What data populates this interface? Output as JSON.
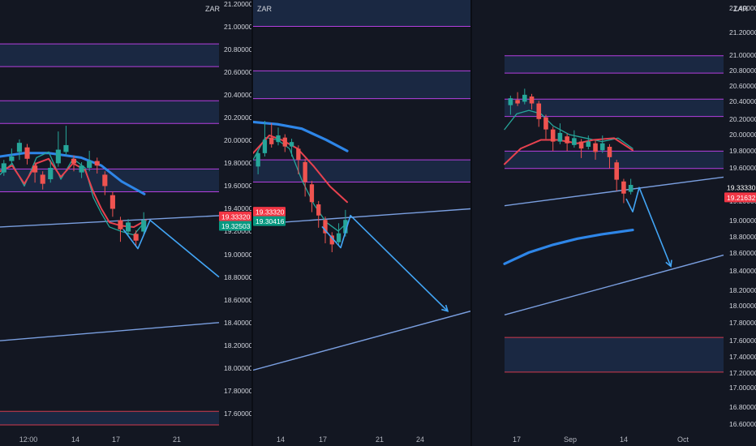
{
  "colors": {
    "background": "#131722",
    "zone_fill": "#1e2f4d",
    "zone_border": "#b53fe0",
    "zone_border_low": "#d23a4d",
    "trendline": "#7a9fe0",
    "projection": "#42a5f5",
    "ma_long": "#2e86e8",
    "ma_fast": "#e8424f",
    "ma_mid": "#26a69a",
    "candle_up": "#26a69a",
    "candle_down": "#ef5350",
    "tag_red": "#f23645",
    "tag_teal": "#089981"
  },
  "chart_data": [
    {
      "type": "candlestick",
      "title": "",
      "currency": "ZAR",
      "y_ticks": [
        "21.20000",
        "21.00000",
        "20.80000",
        "20.60000",
        "20.40000",
        "20.20000",
        "20.00000",
        "19.80000",
        "19.60000",
        "19.40000",
        "19.20000",
        "19.00000",
        "18.80000",
        "18.60000",
        "18.40000",
        "18.20000",
        "18.00000",
        "17.80000",
        "17.60000"
      ],
      "ylim": [
        17.5,
        21.3
      ],
      "x_ticks": [
        "12:00",
        "14",
        "17",
        "21"
      ],
      "price_tags": [
        {
          "label": "19.33320",
          "value": 19.3332,
          "color": "red"
        },
        {
          "label": "19.32503",
          "value": 19.25,
          "color": "teal"
        }
      ],
      "zones": [
        [
          20.65,
          20.85
        ],
        [
          20.15,
          20.35
        ],
        [
          19.55,
          19.75
        ],
        [
          17.5,
          17.62
        ]
      ],
      "trendlines": [
        {
          "from": [
            0,
            19.24
          ],
          "to": [
            270,
            19.34
          ]
        },
        {
          "from": [
            0,
            18.24
          ],
          "to": [
            270,
            18.4
          ]
        }
      ],
      "projection": [
        [
          152,
          19.22
        ],
        [
          170,
          19.05
        ],
        [
          185,
          19.3
        ],
        [
          270,
          18.8
        ]
      ],
      "ma_long": [
        [
          0,
          19.86
        ],
        [
          30,
          19.89
        ],
        [
          60,
          19.89
        ],
        [
          100,
          19.85
        ],
        [
          125,
          19.78
        ],
        [
          150,
          19.64
        ],
        [
          178,
          19.53
        ]
      ],
      "ma_fast": [
        [
          0,
          19.73
        ],
        [
          15,
          19.78
        ],
        [
          30,
          19.62
        ],
        [
          45,
          19.8
        ],
        [
          60,
          19.84
        ],
        [
          75,
          19.68
        ],
        [
          90,
          19.8
        ],
        [
          105,
          19.74
        ],
        [
          115,
          19.55
        ],
        [
          125,
          19.4
        ],
        [
          135,
          19.28
        ],
        [
          150,
          19.25
        ],
        [
          165,
          19.24
        ],
        [
          180,
          19.3
        ]
      ],
      "ma_mid": [
        [
          0,
          19.7
        ],
        [
          15,
          19.8
        ],
        [
          30,
          19.6
        ],
        [
          45,
          19.85
        ],
        [
          60,
          19.9
        ],
        [
          75,
          19.66
        ],
        [
          90,
          19.84
        ],
        [
          105,
          19.76
        ],
        [
          115,
          19.5
        ],
        [
          125,
          19.36
        ],
        [
          135,
          19.24
        ],
        [
          150,
          19.2
        ],
        [
          165,
          19.17
        ],
        [
          180,
          19.3
        ]
      ],
      "candles": [
        [
          19.72,
          19.8,
          19.78
        ],
        [
          19.82,
          19.86,
          19.9
        ],
        [
          19.9,
          19.98,
          19.86
        ],
        [
          19.94,
          19.84,
          19.82
        ],
        [
          19.78,
          19.72,
          19.66
        ],
        [
          19.7,
          19.62,
          19.6
        ],
        [
          19.66,
          19.76,
          19.8
        ],
        [
          19.8,
          19.92,
          20.05
        ],
        [
          19.9,
          19.96,
          20.1
        ],
        [
          19.84,
          19.8,
          19.76
        ],
        [
          19.72,
          19.78,
          19.7
        ],
        [
          19.76,
          19.82,
          19.88
        ],
        [
          19.82,
          19.78,
          19.74
        ],
        [
          19.7,
          19.6,
          19.55
        ],
        [
          19.52,
          19.4,
          19.36
        ],
        [
          19.3,
          19.22,
          19.14
        ],
        [
          19.2,
          19.28,
          19.24
        ],
        [
          19.18,
          19.12,
          19.1
        ],
        [
          19.2,
          19.3,
          19.34
        ]
      ]
    },
    {
      "type": "candlestick",
      "title": "",
      "currency": "ZAR",
      "y_ticks": [
        "21.20000",
        "21.00000",
        "20.80000",
        "20.60000",
        "20.40000",
        "20.20000",
        "20.00000",
        "19.80000",
        "19.60000",
        "19.40000",
        "19.20000",
        "19.00000",
        "18.80000",
        "18.60000",
        "18.40000",
        "18.20000",
        "18.00000",
        "17.80000",
        "17.60000"
      ],
      "ylim": [
        17.5,
        21.3
      ],
      "x_ticks": [
        "14",
        "17",
        "21",
        "24"
      ],
      "price_tags": [
        {
          "label": "19.33320",
          "value": 19.3332,
          "color": "red"
        },
        {
          "label": "19.30416",
          "value": 19.25,
          "color": "teal"
        }
      ],
      "zones": [
        [
          21.0,
          21.3
        ],
        [
          20.35,
          20.6
        ],
        [
          19.6,
          19.8
        ]
      ],
      "trendlines": [
        {
          "from": [
            0,
            19.22
          ],
          "to": [
            268,
            19.36
          ]
        },
        {
          "from": [
            0,
            17.91
          ],
          "to": [
            268,
            18.44
          ]
        }
      ],
      "projection": [
        [
          85,
          19.2
        ],
        [
          108,
          19.01
        ],
        [
          120,
          19.3
        ],
        [
          240,
          18.44
        ]
      ],
      "ma_long": [
        [
          0,
          20.14
        ],
        [
          30,
          20.12
        ],
        [
          60,
          20.08
        ],
        [
          90,
          19.98
        ],
        [
          116,
          19.88
        ]
      ],
      "ma_fast": [
        [
          0,
          19.86
        ],
        [
          20,
          20.02
        ],
        [
          35,
          19.98
        ],
        [
          55,
          19.9
        ],
        [
          75,
          19.74
        ],
        [
          95,
          19.56
        ],
        [
          116,
          19.42
        ]
      ],
      "ma_mid": [
        [
          0,
          19.8
        ],
        [
          15,
          20.0
        ],
        [
          30,
          19.98
        ],
        [
          45,
          19.9
        ],
        [
          60,
          19.62
        ],
        [
          75,
          19.4
        ],
        [
          90,
          19.24
        ],
        [
          105,
          19.16
        ],
        [
          118,
          19.25
        ]
      ],
      "candles": [
        [
          19.74,
          19.86,
          19.7
        ],
        [
          19.86,
          19.98,
          20.12
        ],
        [
          20.0,
          19.94,
          20.1
        ],
        [
          19.96,
          20.02,
          20.06
        ],
        [
          20.0,
          19.92,
          19.9
        ],
        [
          19.92,
          19.96,
          19.86
        ],
        [
          19.9,
          19.8,
          19.7
        ],
        [
          19.78,
          19.6,
          19.5
        ],
        [
          19.58,
          19.42,
          19.36
        ],
        [
          19.4,
          19.3,
          19.22
        ],
        [
          19.26,
          19.14,
          19.08
        ],
        [
          19.12,
          19.04,
          19.0
        ],
        [
          19.06,
          19.14,
          19.2
        ],
        [
          19.14,
          19.26,
          19.32
        ]
      ]
    },
    {
      "type": "candlestick",
      "title": "",
      "currency": "ZAR",
      "y_ticks": [
        "21.40000",
        "21.20000",
        "21.00000",
        "20.80000",
        "20.60000",
        "20.40000",
        "20.20000",
        "20.00000",
        "19.80000",
        "19.60000",
        "19.40000",
        "19.20000",
        "19.00000",
        "18.80000",
        "18.60000",
        "18.40000",
        "18.20000",
        "18.00000",
        "17.80000",
        "17.60000",
        "17.40000",
        "17.20000",
        "17.00000",
        "16.80000",
        "16.60000"
      ],
      "ylim": [
        16.5,
        21.55
      ],
      "x_ticks": [
        "17",
        "Sep",
        "14",
        "Oct"
      ],
      "price_tags": [
        {
          "label": "19.33330",
          "value": 19.3333,
          "color": "dark"
        },
        {
          "label": "19.21632",
          "value": 19.21632,
          "color": "red"
        }
      ],
      "zones": [
        [
          20.65,
          20.85
        ],
        [
          20.15,
          20.35
        ],
        [
          19.55,
          19.75
        ],
        [
          17.2,
          17.6
        ]
      ],
      "trendlines": [
        {
          "from": [
            0,
            19.12
          ],
          "to": [
            270,
            19.45
          ]
        },
        {
          "from": [
            0,
            17.86
          ],
          "to": [
            270,
            18.55
          ]
        }
      ],
      "projection": [
        [
          150,
          19.2
        ],
        [
          158,
          19.05
        ],
        [
          166,
          19.33
        ],
        [
          205,
          18.42
        ]
      ],
      "ma_long": [
        [
          0,
          18.45
        ],
        [
          30,
          18.58
        ],
        [
          60,
          18.67
        ],
        [
          90,
          18.74
        ],
        [
          120,
          18.79
        ],
        [
          158,
          18.84
        ]
      ],
      "ma_fast": [
        [
          0,
          19.6
        ],
        [
          20,
          19.78
        ],
        [
          45,
          19.88
        ],
        [
          65,
          19.88
        ],
        [
          90,
          19.84
        ],
        [
          110,
          19.88
        ],
        [
          135,
          19.9
        ],
        [
          158,
          19.76
        ]
      ],
      "ma_mid": [
        [
          0,
          20.0
        ],
        [
          15,
          20.18
        ],
        [
          30,
          20.22
        ],
        [
          45,
          20.18
        ],
        [
          60,
          20.04
        ],
        [
          80,
          19.94
        ],
        [
          100,
          19.9
        ],
        [
          120,
          19.86
        ],
        [
          140,
          19.9
        ],
        [
          158,
          19.78
        ]
      ],
      "candles": [
        [
          20.28,
          20.36,
          20.2
        ],
        [
          20.34,
          20.3,
          20.4
        ],
        [
          20.32,
          20.4,
          20.44
        ],
        [
          20.38,
          20.3,
          20.26
        ],
        [
          20.3,
          20.12,
          20.06
        ],
        [
          20.14,
          20.0,
          19.92
        ],
        [
          20.0,
          19.86,
          19.78
        ],
        [
          19.86,
          19.96,
          20.04
        ],
        [
          19.92,
          19.84,
          19.78
        ],
        [
          19.82,
          19.9,
          19.96
        ],
        [
          19.86,
          19.78,
          19.7
        ],
        [
          19.8,
          19.86,
          19.9
        ],
        [
          19.84,
          19.74,
          19.68
        ],
        [
          19.76,
          19.84,
          19.9
        ],
        [
          19.8,
          19.68,
          19.58
        ],
        [
          19.62,
          19.42,
          19.32
        ],
        [
          19.4,
          19.26,
          19.18
        ],
        [
          19.28,
          19.36,
          19.4
        ]
      ]
    }
  ]
}
